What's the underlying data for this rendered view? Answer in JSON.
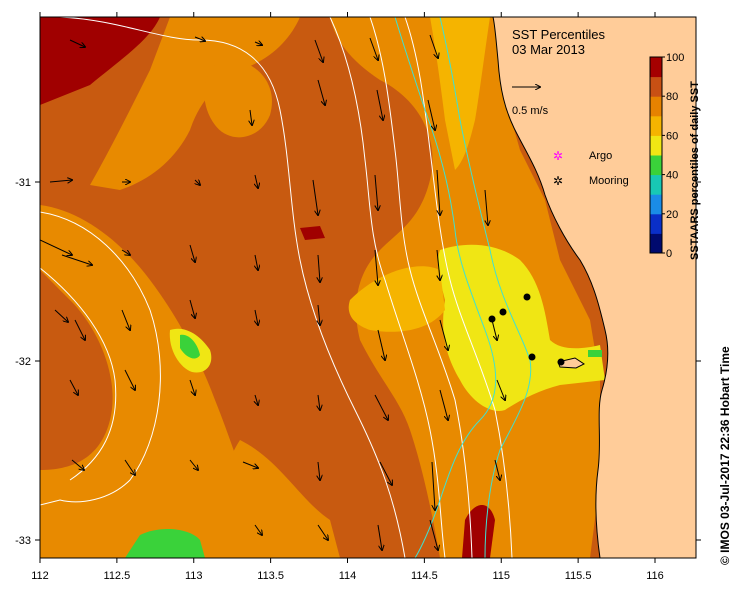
{
  "title": "SST Percentiles",
  "date": "03 Mar 2013",
  "vector_scale_label": "0.5 m/s",
  "legend": [
    {
      "label": "Argo",
      "symbol": "magenta-star",
      "color": "#ff00ff"
    },
    {
      "label": "Mooring",
      "symbol": "black-star",
      "color": "#000000"
    }
  ],
  "colorbar": {
    "label": "SSTAARS percentiles of daily SST",
    "ticks": [
      "0",
      "20",
      "40",
      "60",
      "80",
      "100"
    ],
    "colors": [
      "#000a6e",
      "#0a2fc8",
      "#1a8ce6",
      "#18c8b4",
      "#3ad23a",
      "#f0e614",
      "#f5b400",
      "#e68200",
      "#c85014",
      "#a50000"
    ]
  },
  "x_ticks": [
    "112",
    "112.5",
    "113",
    "113.5",
    "114",
    "114.5",
    "115",
    "115.5",
    "116"
  ],
  "y_ticks": [
    "-31",
    "-32",
    "-33"
  ],
  "credit": "© IMOS 03-Jul-2017 22:36 Hobart Time",
  "colors": {
    "land": "#ffcc99",
    "sst_base": "#c85a10",
    "sst_mid": "#e88a00",
    "sst_high": "#f5b400",
    "sst_top": "#f0e614",
    "sst_max": "#a00000",
    "contour_white": "#ffffff",
    "contour_cyan": "#40e0d0"
  }
}
